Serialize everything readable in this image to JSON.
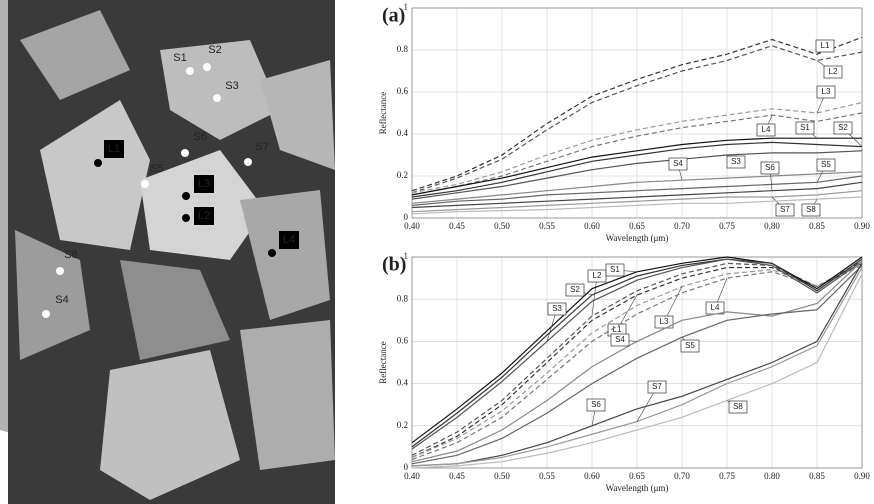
{
  "photo": {
    "points": [
      {
        "label": "S1"
      },
      {
        "label": "S2"
      },
      {
        "label": "S3"
      },
      {
        "label": "S4"
      },
      {
        "label": "S5"
      },
      {
        "label": "S6"
      },
      {
        "label": "S7"
      },
      {
        "label": "S8"
      },
      {
        "label": "L1"
      },
      {
        "label": "L2"
      },
      {
        "label": "L3"
      },
      {
        "label": "L4"
      }
    ]
  },
  "chart_data": [
    {
      "type": "line",
      "panel": "(a)",
      "x_label": "Wavelength (μm)",
      "y_label": "Reflectance",
      "x": [
        0.4,
        0.45,
        0.5,
        0.55,
        0.6,
        0.65,
        0.7,
        0.75,
        0.8,
        0.85,
        0.9
      ],
      "xlim": [
        0.4,
        0.9
      ],
      "ylim": [
        0,
        1
      ],
      "xticks": [
        {
          "value": 0.4,
          "label": "0.40"
        },
        {
          "value": 0.45,
          "label": "0.45"
        },
        {
          "value": 0.5,
          "label": "0.50"
        },
        {
          "value": 0.55,
          "label": "0.55"
        },
        {
          "value": 0.6,
          "label": "0.60"
        },
        {
          "value": 0.65,
          "label": "0.65"
        },
        {
          "value": 0.7,
          "label": "0.70"
        },
        {
          "value": 0.75,
          "label": "0.75"
        },
        {
          "value": 0.8,
          "label": "0.80"
        },
        {
          "value": 0.85,
          "label": "0.85"
        },
        {
          "value": 0.9,
          "label": "0.90"
        }
      ],
      "yticks": [
        0,
        0.2,
        0.4,
        0.6,
        0.8,
        1
      ],
      "grid": true,
      "series": [
        {
          "name": "L1",
          "color": "#333333",
          "style": "dashed",
          "values": [
            0.13,
            0.2,
            0.3,
            0.45,
            0.58,
            0.66,
            0.73,
            0.78,
            0.85,
            0.78,
            0.86
          ]
        },
        {
          "name": "L2",
          "color": "#555555",
          "style": "dashed",
          "values": [
            0.12,
            0.19,
            0.28,
            0.42,
            0.55,
            0.63,
            0.7,
            0.75,
            0.82,
            0.75,
            0.79
          ]
        },
        {
          "name": "L3",
          "color": "#999999",
          "style": "dashed",
          "values": [
            0.12,
            0.16,
            0.22,
            0.3,
            0.37,
            0.42,
            0.46,
            0.49,
            0.52,
            0.5,
            0.55
          ]
        },
        {
          "name": "L4",
          "color": "#777777",
          "style": "dashed",
          "values": [
            0.11,
            0.15,
            0.2,
            0.27,
            0.34,
            0.39,
            0.43,
            0.46,
            0.49,
            0.46,
            0.5
          ]
        },
        {
          "name": "S1",
          "color": "#111111",
          "style": "solid",
          "values": [
            0.11,
            0.15,
            0.19,
            0.24,
            0.29,
            0.32,
            0.35,
            0.37,
            0.38,
            0.38,
            0.38
          ]
        },
        {
          "name": "S2",
          "color": "#333333",
          "style": "solid",
          "values": [
            0.1,
            0.13,
            0.17,
            0.22,
            0.27,
            0.3,
            0.33,
            0.35,
            0.36,
            0.35,
            0.34
          ]
        },
        {
          "name": "S3",
          "color": "#555555",
          "style": "solid",
          "values": [
            0.09,
            0.12,
            0.15,
            0.19,
            0.23,
            0.26,
            0.28,
            0.3,
            0.31,
            0.31,
            0.32
          ]
        },
        {
          "name": "S4",
          "color": "#888888",
          "style": "solid",
          "values": [
            0.07,
            0.09,
            0.11,
            0.13,
            0.15,
            0.17,
            0.18,
            0.19,
            0.2,
            0.21,
            0.22
          ]
        },
        {
          "name": "S5",
          "color": "#666666",
          "style": "solid",
          "values": [
            0.06,
            0.08,
            0.09,
            0.11,
            0.12,
            0.13,
            0.14,
            0.15,
            0.16,
            0.17,
            0.2
          ]
        },
        {
          "name": "S6",
          "color": "#444444",
          "style": "solid",
          "values": [
            0.05,
            0.06,
            0.07,
            0.08,
            0.09,
            0.1,
            0.11,
            0.12,
            0.13,
            0.14,
            0.17
          ]
        },
        {
          "name": "S7",
          "color": "#999999",
          "style": "solid",
          "values": [
            0.03,
            0.04,
            0.05,
            0.06,
            0.07,
            0.08,
            0.09,
            0.1,
            0.1,
            0.11,
            0.13
          ]
        },
        {
          "name": "S8",
          "color": "#bbbbbb",
          "style": "solid",
          "values": [
            0.02,
            0.03,
            0.035,
            0.04,
            0.05,
            0.06,
            0.07,
            0.07,
            0.08,
            0.09,
            0.1
          ]
        }
      ]
    },
    {
      "type": "line",
      "panel": "(b)",
      "x_label": "Wavelength (μm)",
      "y_label": "Reflectance",
      "x": [
        0.4,
        0.45,
        0.5,
        0.55,
        0.6,
        0.65,
        0.7,
        0.75,
        0.8,
        0.85,
        0.9
      ],
      "xlim": [
        0.4,
        0.9
      ],
      "ylim": [
        0,
        1
      ],
      "xticks": [
        {
          "value": 0.4,
          "label": "0.40"
        },
        {
          "value": 0.45,
          "label": "0.45"
        },
        {
          "value": 0.5,
          "label": "0.50"
        },
        {
          "value": 0.55,
          "label": "0.55"
        },
        {
          "value": 0.6,
          "label": "0.60"
        },
        {
          "value": 0.65,
          "label": "0.65"
        },
        {
          "value": 0.7,
          "label": "0.70"
        },
        {
          "value": 0.75,
          "label": "0.75"
        },
        {
          "value": 0.8,
          "label": "0.80"
        },
        {
          "value": 0.85,
          "label": "0.85"
        },
        {
          "value": 0.9,
          "label": "0.90"
        }
      ],
      "yticks": [
        0,
        0.2,
        0.4,
        0.6,
        0.8,
        1
      ],
      "grid": true,
      "series": [
        {
          "name": "L1",
          "color": "#333333",
          "style": "dashed",
          "values": [
            0.05,
            0.15,
            0.3,
            0.5,
            0.7,
            0.82,
            0.9,
            0.95,
            0.95,
            0.86,
            0.97
          ]
        },
        {
          "name": "L2",
          "color": "#555555",
          "style": "dashed",
          "values": [
            0.06,
            0.17,
            0.32,
            0.52,
            0.72,
            0.84,
            0.92,
            0.97,
            0.96,
            0.86,
            0.98
          ]
        },
        {
          "name": "L3",
          "color": "#999999",
          "style": "dashed",
          "values": [
            0.05,
            0.14,
            0.27,
            0.45,
            0.64,
            0.77,
            0.86,
            0.92,
            0.94,
            0.86,
            0.97
          ]
        },
        {
          "name": "L4",
          "color": "#777777",
          "style": "dashed",
          "values": [
            0.04,
            0.12,
            0.24,
            0.42,
            0.6,
            0.73,
            0.83,
            0.9,
            0.93,
            0.86,
            0.96
          ]
        },
        {
          "name": "S1",
          "color": "#111111",
          "style": "solid",
          "values": [
            0.12,
            0.28,
            0.45,
            0.65,
            0.85,
            0.93,
            0.97,
            1,
            0.97,
            0.85,
            1
          ]
        },
        {
          "name": "S2",
          "color": "#333333",
          "style": "solid",
          "values": [
            0.1,
            0.26,
            0.43,
            0.63,
            0.82,
            0.91,
            0.96,
            0.99,
            0.97,
            0.84,
            0.99
          ]
        },
        {
          "name": "S3",
          "color": "#555555",
          "style": "solid",
          "values": [
            0.09,
            0.24,
            0.41,
            0.6,
            0.79,
            0.89,
            0.95,
            0.99,
            0.96,
            0.83,
            0.98
          ]
        },
        {
          "name": "S4",
          "color": "#888888",
          "style": "solid",
          "values": [
            0.03,
            0.08,
            0.18,
            0.32,
            0.48,
            0.6,
            0.7,
            0.74,
            0.72,
            0.78,
            0.98
          ]
        },
        {
          "name": "S5",
          "color": "#666666",
          "style": "solid",
          "values": [
            0.02,
            0.06,
            0.14,
            0.26,
            0.4,
            0.52,
            0.62,
            0.7,
            0.73,
            0.75,
            0.96
          ]
        },
        {
          "name": "S6",
          "color": "#444444",
          "style": "solid",
          "values": [
            0.01,
            0.02,
            0.06,
            0.12,
            0.2,
            0.28,
            0.34,
            0.42,
            0.5,
            0.6,
            0.97
          ]
        },
        {
          "name": "S7",
          "color": "#999999",
          "style": "solid",
          "values": [
            0.01,
            0.02,
            0.05,
            0.1,
            0.16,
            0.22,
            0.3,
            0.4,
            0.48,
            0.58,
            0.95
          ]
        },
        {
          "name": "S8",
          "color": "#bbbbbb",
          "style": "solid",
          "values": [
            0,
            0.01,
            0.03,
            0.07,
            0.12,
            0.18,
            0.24,
            0.32,
            0.4,
            0.5,
            0.92
          ]
        }
      ]
    }
  ]
}
